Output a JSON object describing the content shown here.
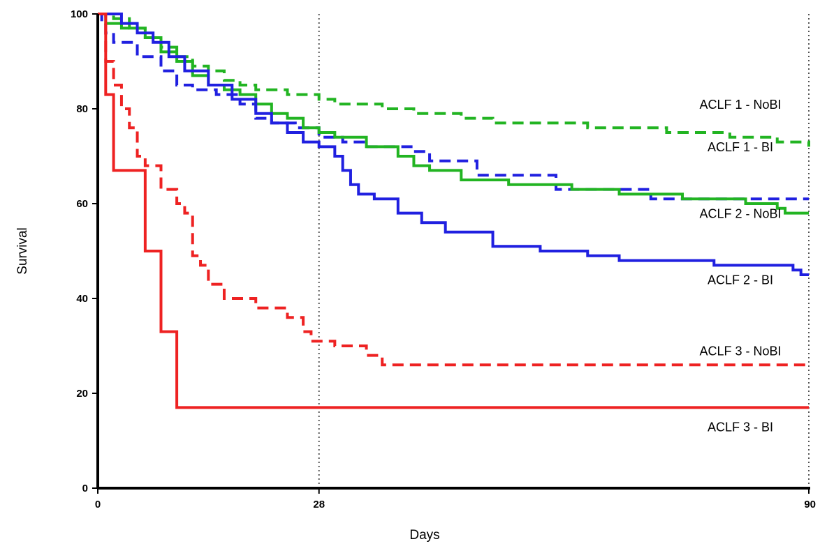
{
  "chart_data": {
    "type": "line",
    "title": "",
    "xlabel": "Days",
    "ylabel": "Survival",
    "xlim": [
      0,
      90
    ],
    "ylim": [
      0,
      100
    ],
    "x_ticks": [
      0,
      28,
      90
    ],
    "y_ticks": [
      0,
      20,
      40,
      60,
      80,
      100
    ],
    "reference_lines_x": [
      28,
      90
    ],
    "grid": false,
    "legend": "none",
    "series": [
      {
        "name": "ACLF 1 - NoBI",
        "color": "#22b422",
        "dash": "dashed",
        "step": true,
        "x": [
          0,
          2,
          4,
          6,
          8,
          10,
          12,
          14,
          16,
          18,
          20,
          24,
          28,
          30,
          36,
          40,
          46,
          50,
          56,
          62,
          72,
          80,
          86,
          90
        ],
        "y": [
          100,
          99,
          97,
          95,
          93,
          91,
          89,
          88,
          86,
          85,
          84,
          83,
          82,
          81,
          80,
          79,
          78,
          77,
          77,
          76,
          75,
          74,
          73,
          72
        ]
      },
      {
        "name": "ACLF 1 - BI",
        "color": "#2020e0",
        "dash": "dashed",
        "step": true,
        "x": [
          0,
          0.5,
          1,
          2,
          5,
          8,
          10,
          12,
          15,
          18,
          20,
          22,
          25,
          28,
          31,
          34,
          40,
          42,
          48,
          58,
          70,
          90
        ],
        "y": [
          100,
          98,
          96,
          94,
          91,
          88,
          85,
          84,
          83,
          81,
          78,
          77,
          76,
          74,
          73,
          72,
          71,
          69,
          66,
          63,
          61,
          61
        ]
      },
      {
        "name": "ACLF 2 - NoBI",
        "color": "#22b422",
        "dash": "solid",
        "step": true,
        "x": [
          0,
          1,
          3,
          6,
          8,
          10,
          12,
          14,
          16,
          18,
          20,
          22,
          24,
          26,
          28,
          30,
          34,
          38,
          40,
          42,
          46,
          52,
          60,
          66,
          74,
          82,
          86,
          87,
          90
        ],
        "y": [
          100,
          98,
          97,
          95,
          92,
          90,
          87,
          85,
          84,
          83,
          81,
          79,
          78,
          76,
          75,
          74,
          72,
          70,
          68,
          67,
          65,
          64,
          63,
          62,
          61,
          60,
          59,
          58,
          58
        ]
      },
      {
        "name": "ACLF 2 - BI",
        "color": "#2020e0",
        "dash": "solid",
        "step": true,
        "x": [
          0,
          3,
          5,
          7,
          9,
          11,
          14,
          17,
          20,
          22,
          24,
          26,
          28,
          30,
          31,
          32,
          33,
          35,
          38,
          41,
          44,
          50,
          56,
          62,
          66,
          72,
          78,
          83,
          88,
          89,
          90
        ],
        "y": [
          100,
          98,
          96,
          94,
          91,
          88,
          85,
          82,
          79,
          77,
          75,
          73,
          72,
          70,
          67,
          64,
          62,
          61,
          58,
          56,
          54,
          51,
          50,
          49,
          48,
          48,
          47,
          47,
          46,
          45,
          45
        ]
      },
      {
        "name": "ACLF 3 - NoBI",
        "color": "#ee2222",
        "dash": "dashed",
        "step": true,
        "x": [
          0,
          1,
          2,
          3,
          4,
          5,
          6,
          8,
          10,
          11,
          12,
          13,
          14,
          16,
          18,
          20,
          24,
          26,
          27,
          30,
          34,
          36,
          90
        ],
        "y": [
          100,
          90,
          85,
          80,
          76,
          70,
          68,
          63,
          60,
          58,
          49,
          47,
          43,
          40,
          40,
          38,
          36,
          33,
          31,
          30,
          28,
          26,
          26
        ]
      },
      {
        "name": "ACLF 3 - BI",
        "color": "#ee2222",
        "dash": "solid",
        "step": true,
        "x": [
          0,
          1,
          2,
          6,
          8,
          10,
          90
        ],
        "y": [
          100,
          83,
          67,
          50,
          33,
          17,
          17
        ]
      }
    ],
    "labels": [
      {
        "text": "ACLF 1 - NoBI",
        "x": 80,
        "y": 80
      },
      {
        "text": "ACLF 1 - BI",
        "x": 80,
        "y": 71
      },
      {
        "text": "ACLF 2 - NoBI",
        "x": 80,
        "y": 57
      },
      {
        "text": "ACLF 2 - BI",
        "x": 80,
        "y": 43
      },
      {
        "text": "ACLF 3 - NoBI",
        "x": 80,
        "y": 28
      },
      {
        "text": "ACLF 3 - BI",
        "x": 80,
        "y": 12
      }
    ]
  }
}
